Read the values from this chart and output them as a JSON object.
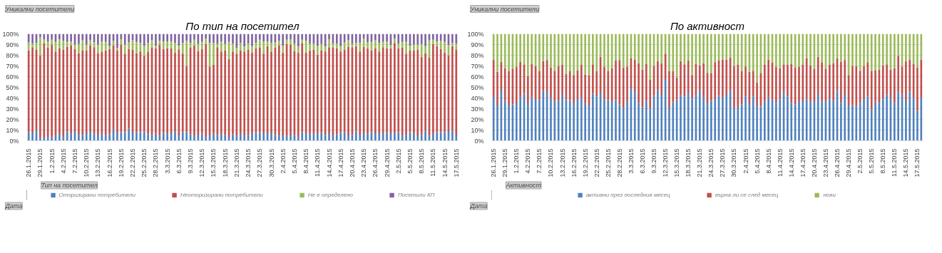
{
  "chart_data": [
    {
      "type": "bar",
      "stacked": true,
      "title": "По тип на посетител",
      "legend": "bottom",
      "grid": "y",
      "ylim": [
        0,
        100
      ],
      "yticks": [
        {
          "value": 0,
          "label": "0%"
        },
        {
          "value": 10,
          "label": "10%"
        },
        {
          "value": 20,
          "label": "20%"
        },
        {
          "value": 30,
          "label": "30%"
        },
        {
          "value": 40,
          "label": "40%"
        },
        {
          "value": 50,
          "label": "50%"
        },
        {
          "value": 60,
          "label": "60%"
        },
        {
          "value": 70,
          "label": "70%"
        },
        {
          "value": 80,
          "label": "80%"
        },
        {
          "value": 90,
          "label": "90%"
        },
        {
          "value": 100,
          "label": "100%"
        }
      ],
      "annotations": [
        "Уникални посетители",
        "Тип на посетител",
        "Дата"
      ],
      "categories": [
        "26.1.2015",
        null,
        null,
        "29.1.2015",
        null,
        null,
        "1.2.2015",
        null,
        null,
        "4.2.2015",
        null,
        null,
        "7.2.2015",
        null,
        null,
        "10.2.2015",
        null,
        null,
        "13.2.2015",
        null,
        null,
        "16.2.2015",
        null,
        null,
        "19.2.2015",
        null,
        null,
        "22.2.2015",
        null,
        null,
        "25.2.2015",
        null,
        null,
        "28.2.2015",
        null,
        null,
        "3.3.2015",
        null,
        null,
        "6.3.2015",
        null,
        null,
        "9.3.2015",
        null,
        null,
        "12.3.2015",
        null,
        null,
        "15.3.2015",
        null,
        null,
        "18.3.2015",
        null,
        null,
        "21.3.2015",
        null,
        null,
        "24.3.2015",
        null,
        null,
        "27.3.2015",
        null,
        null,
        "30.3.2015",
        null,
        null,
        "2.4.2015",
        null,
        null,
        "5.4.2015",
        null,
        null,
        "8.4.2015",
        null,
        null,
        "11.4.2015",
        null,
        null,
        "14.4.2015",
        null,
        null,
        "17.4.2015",
        null,
        null,
        "20.4.2015",
        null,
        null,
        "23.4.2015",
        null,
        null,
        "26.4.2015",
        null,
        null,
        "29.4.2015",
        null,
        null,
        "2.5.2015",
        null,
        null,
        "5.5.2015",
        null,
        null,
        "8.5.2015",
        null,
        null,
        "11.5.2015",
        null,
        null,
        "14.5.2015",
        null,
        null,
        "17.5.2015"
      ],
      "series": [
        {
          "name": "Оторизирани потребители",
          "color": "#4f81bd",
          "values": [
            8,
            7,
            10,
            2.5,
            3,
            3.5,
            3.5,
            4.5,
            7,
            3.5,
            8.5,
            6.5,
            9,
            5.5,
            5.5,
            7,
            9,
            6.5,
            5,
            7,
            5.5,
            6,
            10.5,
            7,
            8,
            8,
            11.5,
            7,
            8,
            8,
            8.5,
            6,
            5.5,
            6.5,
            4.5,
            7.5,
            6.5,
            7,
            9,
            5,
            8,
            8,
            6,
            5,
            5,
            6.5,
            3.5,
            5,
            6.5,
            5.5,
            6,
            5.5,
            3,
            6,
            4.5,
            7,
            4.5,
            5.5,
            7,
            7.5,
            8,
            7,
            7,
            7,
            6,
            4.5,
            5,
            4.5,
            5,
            5.5,
            3.5,
            8,
            7,
            7,
            6,
            7,
            7.5,
            5.5,
            7,
            5,
            6,
            7.5,
            8,
            5,
            5.5,
            9.5,
            5,
            7,
            6.5,
            8,
            7,
            7,
            7,
            7.5,
            7,
            6.5,
            8,
            5,
            5.5,
            8,
            6.5,
            5,
            5.5,
            9.5,
            4.5,
            6.5,
            8,
            8,
            8,
            9,
            9.5,
            5
          ]
        },
        {
          "name": "Неоторизирани потребители",
          "color": "#c0504d",
          "values": [
            76.5,
            80.5,
            75,
            77.5,
            88,
            83.5,
            86.5,
            79,
            79.5,
            81.5,
            79.5,
            82.5,
            77,
            76.5,
            79,
            77.5,
            80,
            81,
            77,
            76,
            79,
            80,
            78.5,
            77.5,
            82,
            73.5,
            74.5,
            78,
            74,
            75.5,
            71,
            77,
            81.5,
            80,
            85.5,
            78.5,
            80,
            79.5,
            73.5,
            80.5,
            73.5,
            62,
            81,
            84,
            79,
            79.5,
            87,
            64.5,
            64.5,
            82,
            77.5,
            79,
            73.5,
            77.5,
            77,
            77.5,
            79,
            79.5,
            75.5,
            79,
            79,
            74.5,
            81.5,
            76.5,
            81,
            85,
            77.5,
            86,
            85,
            78.5,
            79,
            83,
            75.5,
            77.5,
            79,
            73.5,
            77,
            78,
            80.5,
            82,
            80.5,
            76,
            77,
            83,
            82,
            79,
            78.5,
            81,
            80,
            76.5,
            79.5,
            76.5,
            80.5,
            79,
            79.5,
            85,
            78.5,
            82,
            76,
            76.5,
            78,
            80,
            73,
            72.5,
            73.5,
            84,
            80.5,
            78,
            74.5,
            71,
            79,
            80
          ]
        },
        {
          "name": "Не е определено",
          "color": "#9bbb59",
          "values": [
            7.5,
            3.5,
            6.5,
            17,
            4,
            6,
            4.5,
            9,
            8.5,
            8.5,
            4.5,
            4,
            4,
            8.5,
            9.5,
            5.5,
            5,
            4.5,
            8,
            10,
            8,
            2.5,
            4.5,
            2.5,
            5,
            8.5,
            6,
            9,
            10.5,
            8,
            9,
            8.5,
            7,
            2.5,
            3.5,
            7,
            6.5,
            6.5,
            9,
            3.5,
            10,
            23.5,
            4.5,
            5.5,
            6.5,
            6.5,
            5,
            22,
            20.5,
            3,
            9.5,
            6,
            16,
            7.5,
            5.5,
            7,
            4.5,
            6,
            6,
            5,
            7.5,
            11.5,
            4.5,
            8,
            5,
            4,
            6.5,
            4,
            5,
            7,
            5.5,
            3.5,
            11,
            6.5,
            6,
            8.5,
            6,
            4.5,
            7.5,
            4,
            4.5,
            5,
            7,
            6,
            3,
            3,
            8,
            7.5,
            5.5,
            8,
            7.5,
            8,
            5,
            6.5,
            3,
            4,
            4.5,
            5.5,
            11,
            4.5,
            5.5,
            5,
            12,
            6.5,
            16,
            4,
            4.5,
            7.5,
            10,
            9.5,
            3,
            6
          ]
        },
        {
          "name": "Посетили КП",
          "color": "#8064a2",
          "values": [
            8,
            9,
            8.5,
            3,
            5,
            7,
            5.5,
            7.5,
            5,
            6.5,
            7.5,
            7,
            10,
            9.5,
            6,
            10,
            6,
            8,
            10,
            7,
            7.5,
            11.5,
            6.5,
            13,
            5,
            10,
            8,
            6,
            7.5,
            8.5,
            11.5,
            8.5,
            6,
            11,
            6.5,
            7,
            7,
            7,
            8.5,
            11,
            8.5,
            6.5,
            8.5,
            5.5,
            9.5,
            7.5,
            4.5,
            8.5,
            8.5,
            9.5,
            7,
            9.5,
            7.5,
            9,
            13,
            8.5,
            12,
            9,
            11.5,
            8.5,
            5.5,
            7,
            7,
            8.5,
            8,
            6.5,
            11,
            5.5,
            5,
            9,
            12,
            5.5,
            6.5,
            9,
            9,
            11,
            9.5,
            12,
            5,
            9,
            9,
            11.5,
            8,
            6,
            9.5,
            8.5,
            8.5,
            4.5,
            8,
            7.5,
            6,
            8.5,
            7.5,
            7,
            10.5,
            4.5,
            9,
            7.5,
            7.5,
            11,
            10,
            10,
            9.5,
            11.5,
            6,
            5.5,
            7,
            6.5,
            7.5,
            10.5,
            8.5,
            9
          ]
        }
      ]
    },
    {
      "type": "bar",
      "stacked": true,
      "title": "По активност",
      "legend": "bottom",
      "grid": "y",
      "ylim": [
        0,
        100
      ],
      "yticks": [
        {
          "value": 0,
          "label": "0%"
        },
        {
          "value": 10,
          "label": "10%"
        },
        {
          "value": 20,
          "label": "20%"
        },
        {
          "value": 30,
          "label": "30%"
        },
        {
          "value": 40,
          "label": "40%"
        },
        {
          "value": 50,
          "label": "50%"
        },
        {
          "value": 60,
          "label": "60%"
        },
        {
          "value": 70,
          "label": "70%"
        },
        {
          "value": 80,
          "label": "80%"
        },
        {
          "value": 90,
          "label": "90%"
        },
        {
          "value": 100,
          "label": "100%"
        }
      ],
      "annotations": [
        "Уникални посетители",
        "Активност",
        "Дата"
      ],
      "categories": [
        "26.1.2015",
        null,
        null,
        "29.1.2015",
        null,
        null,
        "1.2.2015",
        null,
        null,
        "4.2.2015",
        null,
        null,
        "7.2.2015",
        null,
        null,
        "10.2.2015",
        null,
        null,
        "13.2.2015",
        null,
        null,
        "16.2.2015",
        null,
        null,
        "19.2.2015",
        null,
        null,
        "22.2.2015",
        null,
        null,
        "25.2.2015",
        null,
        null,
        "28.2.2015",
        null,
        null,
        "3.3.2015",
        null,
        null,
        "6.3.2015",
        null,
        null,
        "9.3.2015",
        null,
        null,
        "12.3.2015",
        null,
        null,
        "15.3.2015",
        null,
        null,
        "18.3.2015",
        null,
        null,
        "21.3.2015",
        null,
        null,
        "24.3.2015",
        null,
        null,
        "27.3.2015",
        null,
        null,
        "30.3.2015",
        null,
        null,
        "2.4.2015",
        null,
        null,
        "5.4.2015",
        null,
        null,
        "8.4.2015",
        null,
        null,
        "11.4.2015",
        null,
        null,
        "14.4.2015",
        null,
        null,
        "17.4.2015",
        null,
        null,
        "20.4.2015",
        null,
        null,
        "23.4.2015",
        null,
        null,
        "26.4.2015",
        null,
        null,
        "29.4.2015",
        null,
        null,
        "2.5.2015",
        null,
        null,
        "5.5.2015",
        null,
        null,
        "8.5.2015",
        null,
        null,
        "11.5.2015",
        null,
        null,
        "14.5.2015",
        null,
        null,
        "17.5.2015",
        null
      ],
      "series": [
        {
          "name": "активни през последния месец",
          "color": "#4f81bd",
          "values": [
            41,
            33,
            47,
            37.5,
            33,
            34,
            35,
            40.5,
            44,
            35,
            40.5,
            39,
            38.5,
            46.5,
            45,
            40,
            36.5,
            37.5,
            43,
            38,
            38,
            35,
            39,
            40,
            34.5,
            33,
            44,
            41.5,
            45,
            38.5,
            38,
            37,
            38,
            34,
            30.5,
            37,
            49,
            45.5,
            35.5,
            31.5,
            37.5,
            30,
            42,
            47.5,
            43,
            57,
            31,
            36,
            38.5,
            42.5,
            41.5,
            45,
            39.5,
            42.5,
            47.5,
            40.5,
            35,
            37.5,
            39,
            42,
            40.5,
            43,
            46.5,
            31,
            31,
            34,
            41.5,
            35,
            41.5,
            33,
            32,
            36.5,
            40.5,
            38.5,
            35.5,
            39.5,
            45.5,
            41.5,
            35.5,
            34,
            37,
            37,
            39.5,
            36.5,
            37,
            43,
            36.5,
            37,
            39.5,
            37.5,
            46.5,
            35.5,
            43,
            33,
            33.5,
            32,
            35.5,
            39,
            41.5,
            29.5,
            36.5,
            35.5,
            39.5,
            43.5,
            40,
            35.5,
            45.5,
            43.5,
            37,
            46,
            40,
            28,
            40
          ]
        },
        {
          "name": "върна ли се след месец",
          "color": "#c0504d",
          "values": [
            35,
            31.5,
            27,
            30.5,
            32,
            33.5,
            34,
            33.5,
            27.5,
            25.5,
            31.5,
            31,
            26.5,
            28,
            30.5,
            28.5,
            29,
            32.5,
            28,
            24.5,
            27,
            26.5,
            27,
            31,
            27.5,
            28.5,
            27.5,
            23.5,
            33.5,
            30.5,
            27,
            31,
            37,
            41.5,
            38,
            32.5,
            28,
            30.5,
            37,
            35,
            34.5,
            27,
            28,
            27,
            29.5,
            24.5,
            34,
            29,
            20.5,
            32,
            30,
            30,
            22,
            29.5,
            23,
            32,
            28.5,
            25.5,
            34.5,
            33,
            35.5,
            33,
            31.5,
            39,
            40,
            31,
            28,
            29.5,
            24,
            21.5,
            31.5,
            34.5,
            35.5,
            34.5,
            33.5,
            28.5,
            26,
            29.5,
            36.5,
            34.5,
            32,
            34,
            37.5,
            34,
            30.5,
            35.5,
            37,
            30.5,
            31.5,
            35,
            30.5,
            38.5,
            32.5,
            28.5,
            36.5,
            38,
            30,
            31,
            32,
            35.5,
            29.5,
            31,
            31,
            28,
            26.5,
            32.5,
            34,
            26,
            37.5,
            30,
            32,
            40.5,
            36
          ]
        },
        {
          "name": "нови",
          "color": "#9bbb59",
          "values": [
            24,
            35.5,
            26,
            32,
            35,
            32.5,
            31,
            26,
            28.5,
            39.5,
            28,
            30,
            35,
            25.5,
            24.5,
            31.5,
            34.5,
            30,
            29,
            37.5,
            35,
            38.5,
            34,
            29,
            38,
            38.5,
            28.5,
            35,
            21.5,
            31,
            35,
            32,
            25,
            24.5,
            31.5,
            30.5,
            23,
            24,
            27.5,
            33.5,
            28,
            43,
            30,
            25.5,
            27.5,
            18.5,
            35,
            35,
            41,
            25.5,
            28.5,
            25,
            38.5,
            28,
            29.5,
            27.5,
            36.5,
            37,
            26.5,
            25,
            24,
            24,
            22,
            30,
            29,
            35,
            30.5,
            35.5,
            34.5,
            45.5,
            36.5,
            29,
            24,
            27,
            31,
            32,
            28.5,
            29,
            28,
            31.5,
            31,
            29,
            23,
            29.5,
            32.5,
            21.5,
            26.5,
            32.5,
            29,
            27.5,
            23,
            26,
            24.5,
            38.5,
            30,
            30,
            34.5,
            30,
            26.5,
            35,
            34,
            33.5,
            29.5,
            28.5,
            33.5,
            32,
            20.5,
            30.5,
            25.5,
            24,
            28,
            31.5,
            24
          ]
        }
      ]
    }
  ]
}
